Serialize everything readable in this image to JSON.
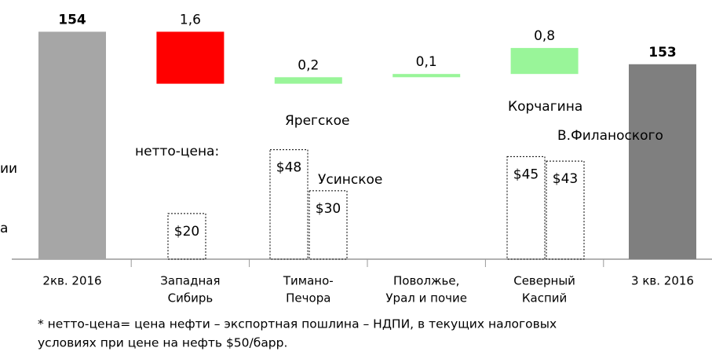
{
  "chart_data": {
    "type": "waterfall",
    "categories": [
      [
        "2кв. 2016"
      ],
      [
        "Западная",
        "Сибирь"
      ],
      [
        "Тимано-",
        "Печора"
      ],
      [
        "Поволжье,",
        "Урал и почие"
      ],
      [
        "Северный",
        "Каспий"
      ],
      [
        "3 кв. 2016"
      ]
    ],
    "values": [
      154,
      -1.6,
      0.2,
      0.1,
      0.8,
      153
    ],
    "value_labels": [
      "154",
      "1,6",
      "0,2",
      "0,1",
      "0,8",
      "153"
    ],
    "kinds": [
      "total",
      "delta",
      "delta",
      "delta",
      "delta",
      "total"
    ],
    "colors": [
      "#a6a6a6",
      "#ff0000",
      "#99f599",
      "#99f599",
      "#99f599",
      "#7f7f7f"
    ],
    "ylim": [
      147,
      154.3
    ],
    "net_prices": {
      "values": [
        20,
        48,
        30,
        45,
        43
      ],
      "value_labels": [
        "$20",
        "$48",
        "$30",
        "$45",
        "$43"
      ],
      "y2lim": [
        0,
        104
      ]
    },
    "annotations": [
      "нетто-цена:",
      "Ярегское",
      "Усинское",
      "Корчагина",
      "В.Филаноского",
      "ии",
      "а"
    ],
    "footnote": [
      "* нетто-цена= цена нефти – экспортная пошлина – НДПИ, в текущих налоговых",
      "условиях при цене на нефть $50/барр."
    ]
  }
}
